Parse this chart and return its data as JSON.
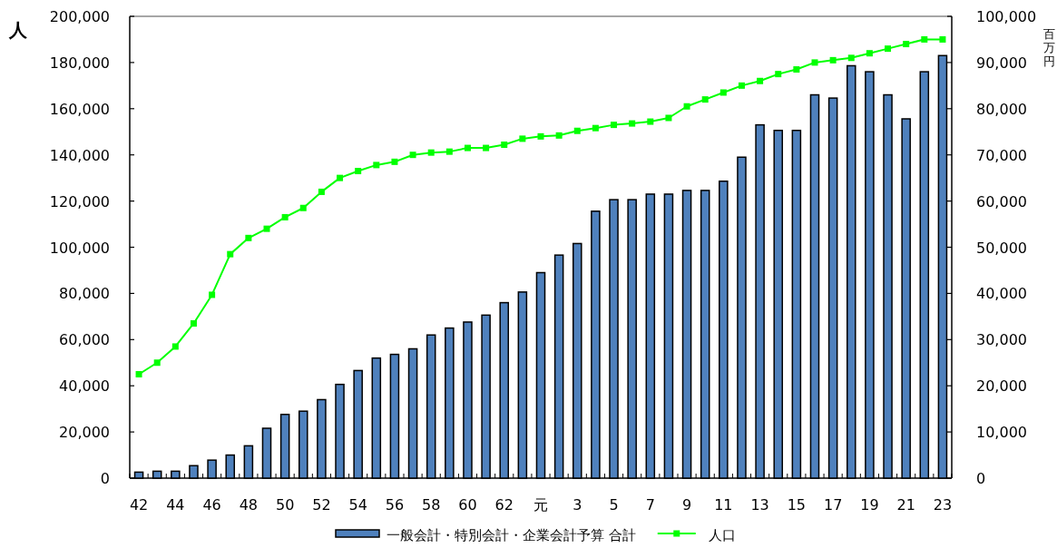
{
  "chart_data": {
    "type": "bar",
    "ylabel": "人",
    "y2label": "百万円",
    "categories": [
      "42",
      null,
      "44",
      null,
      "46",
      null,
      "48",
      null,
      "50",
      null,
      "52",
      null,
      "54",
      null,
      "56",
      null,
      "58",
      null,
      "60",
      null,
      "62",
      null,
      "元",
      null,
      "3",
      null,
      "5",
      null,
      "7",
      null,
      "9",
      null,
      "11",
      null,
      "13",
      null,
      "15",
      null,
      "17",
      null,
      "19",
      null,
      "21",
      null,
      "23"
    ],
    "series": [
      {
        "name": "一般会計・特別会計・企業会計予算 合計",
        "color": "#4f81bd",
        "axis": "y2",
        "values": [
          1300,
          1500,
          1500,
          2700,
          3900,
          5000,
          7000,
          10800,
          13800,
          14500,
          17000,
          20300,
          23300,
          26000,
          26800,
          28000,
          31000,
          32500,
          33800,
          35300,
          38000,
          40300,
          44500,
          48300,
          50800,
          57800,
          60300,
          60300,
          61500,
          61500,
          62300,
          62300,
          64300,
          69500,
          76500,
          75300,
          75300,
          83000,
          82300,
          89300,
          88000,
          83000,
          77800,
          88000,
          91500
        ]
      },
      {
        "name": "人口",
        "type": "line",
        "color": "#00ff00",
        "values": [
          45000,
          50000,
          57000,
          67000,
          79400,
          97000,
          104000,
          108000,
          113000,
          117000,
          124000,
          130000,
          133000,
          135600,
          137000,
          140000,
          141000,
          141400,
          143000,
          143000,
          144400,
          147000,
          148000,
          148400,
          150400,
          151600,
          153000,
          153600,
          154400,
          156000,
          161000,
          164000,
          167000,
          170000,
          172000,
          175000,
          177000,
          180000,
          181000,
          182000,
          184000,
          186000,
          188000,
          190000,
          190000
        ]
      }
    ],
    "ylim": [
      0,
      200000
    ],
    "yticks": [
      0,
      {
        "value": 20000,
        "label": "20,000"
      },
      {
        "value": 40000,
        "label": "40,000"
      },
      {
        "value": 60000,
        "label": "60,000"
      },
      {
        "value": 80000,
        "label": "80,000"
      },
      {
        "value": 100000,
        "label": "100,000"
      },
      {
        "value": 120000,
        "label": "120,000"
      },
      {
        "value": 140000,
        "label": "140,000"
      },
      {
        "value": 160000,
        "label": "160,000"
      },
      {
        "value": 180000,
        "label": "180,000"
      },
      {
        "value": 200000,
        "label": "200,000"
      }
    ],
    "y2lim": [
      0,
      100000
    ],
    "y2ticks": [
      0,
      {
        "value": 10000,
        "label": "10,000"
      },
      {
        "value": 20000,
        "label": "20,000"
      },
      {
        "value": 30000,
        "label": "30,000"
      },
      {
        "value": 40000,
        "label": "40,000"
      },
      {
        "value": 50000,
        "label": "50,000"
      },
      {
        "value": 60000,
        "label": "60,000"
      },
      {
        "value": 70000,
        "label": "70,000"
      },
      {
        "value": 80000,
        "label": "80,000"
      },
      {
        "value": 90000,
        "label": "90,000"
      },
      {
        "value": 100000,
        "label": "100,000"
      }
    ],
    "marker": "square",
    "legend": "bottom"
  }
}
